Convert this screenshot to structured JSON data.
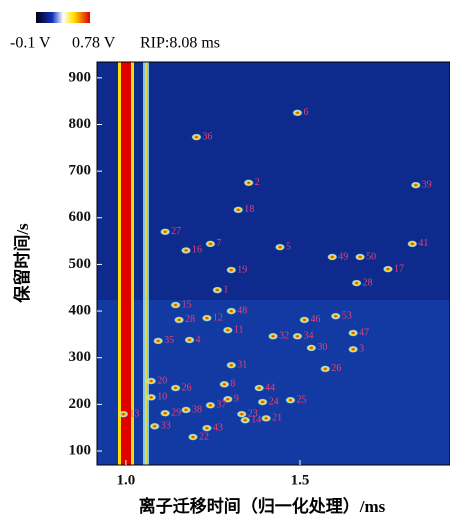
{
  "chart_data": {
    "type": "heatmap",
    "scale_min_label": "-0.1 V",
    "scale_max_label": "0.78 V",
    "rip_label": "RIP:8.08 ms",
    "x_label": "离子迁移时间（归一化处理）/ms",
    "y_label": "保留时间/s",
    "xlim": [
      0.917,
      1.931
    ],
    "ylim": [
      70,
      934
    ],
    "xticks": [
      {
        "value": 1,
        "label": "1.0"
      },
      1.5
    ],
    "yticks": [
      100,
      200,
      300,
      400,
      500,
      600,
      700,
      800,
      900
    ],
    "spots": [
      {
        "label": "6",
        "x": 1.51,
        "y": 825
      },
      {
        "label": "36",
        "x": 1.22,
        "y": 773
      },
      {
        "label": "2",
        "x": 1.37,
        "y": 675
      },
      {
        "label": "39",
        "x": 1.85,
        "y": 670
      },
      {
        "label": "18",
        "x": 1.34,
        "y": 617
      },
      {
        "label": "27",
        "x": 1.13,
        "y": 570
      },
      {
        "label": "7",
        "x": 1.26,
        "y": 544
      },
      {
        "label": "5",
        "x": 1.46,
        "y": 537
      },
      {
        "label": "16",
        "x": 1.19,
        "y": 530
      },
      {
        "label": "41",
        "x": 1.84,
        "y": 544
      },
      {
        "label": "49",
        "x": 1.61,
        "y": 516
      },
      {
        "label": "50",
        "x": 1.69,
        "y": 516
      },
      {
        "label": "19",
        "x": 1.32,
        "y": 488
      },
      {
        "label": "17",
        "x": 1.77,
        "y": 490
      },
      {
        "label": "28",
        "x": 1.68,
        "y": 460
      },
      {
        "label": "1",
        "x": 1.28,
        "y": 445
      },
      {
        "label": "15",
        "x": 1.16,
        "y": 413
      },
      {
        "label": "48",
        "x": 1.32,
        "y": 400
      },
      {
        "label": "53",
        "x": 1.62,
        "y": 389
      },
      {
        "label": "28",
        "x": 1.17,
        "y": 381
      },
      {
        "label": "12",
        "x": 1.25,
        "y": 385
      },
      {
        "label": "46",
        "x": 1.53,
        "y": 381
      },
      {
        "label": "11",
        "x": 1.31,
        "y": 359
      },
      {
        "label": "32",
        "x": 1.44,
        "y": 346
      },
      {
        "label": "34",
        "x": 1.51,
        "y": 346
      },
      {
        "label": "47",
        "x": 1.67,
        "y": 353
      },
      {
        "label": "35",
        "x": 1.11,
        "y": 336
      },
      {
        "label": "4",
        "x": 1.2,
        "y": 338
      },
      {
        "label": "30",
        "x": 1.55,
        "y": 321
      },
      {
        "label": "3",
        "x": 1.67,
        "y": 318
      },
      {
        "label": "31",
        "x": 1.32,
        "y": 284
      },
      {
        "label": "26",
        "x": 1.59,
        "y": 276
      },
      {
        "label": "20",
        "x": 1.09,
        "y": 250
      },
      {
        "label": "8",
        "x": 1.3,
        "y": 243
      },
      {
        "label": "26",
        "x": 1.16,
        "y": 235
      },
      {
        "label": "44",
        "x": 1.4,
        "y": 235
      },
      {
        "label": "10",
        "x": 1.09,
        "y": 215
      },
      {
        "label": "9",
        "x": 1.31,
        "y": 211
      },
      {
        "label": "37",
        "x": 1.26,
        "y": 198
      },
      {
        "label": "25",
        "x": 1.49,
        "y": 209
      },
      {
        "label": "24",
        "x": 1.41,
        "y": 205
      },
      {
        "label": "38",
        "x": 1.19,
        "y": 188
      },
      {
        "label": "29",
        "x": 1.13,
        "y": 181
      },
      {
        "label": "23",
        "x": 1.35,
        "y": 179
      },
      {
        "label": "13",
        "x": 1.01,
        "y": 179
      },
      {
        "label": "21",
        "x": 1.42,
        "y": 170
      },
      {
        "label": "14",
        "x": 1.36,
        "y": 166
      },
      {
        "label": "33",
        "x": 1.1,
        "y": 153
      },
      {
        "label": "43",
        "x": 1.25,
        "y": 149
      },
      {
        "label": "22",
        "x": 1.21,
        "y": 130
      }
    ]
  }
}
